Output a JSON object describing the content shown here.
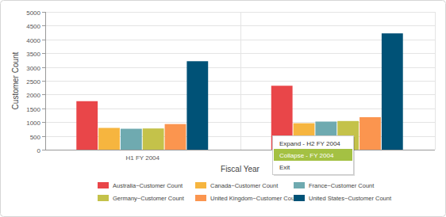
{
  "chart_data": {
    "type": "bar",
    "x_label": "Fiscal Year",
    "y_label": "Customer Count",
    "categories": [
      "H1 FY 2004",
      null
    ],
    "series": [
      {
        "name": "Australia~Customer Count",
        "color": "#e94649",
        "values": [
          1760,
          2320
        ]
      },
      {
        "name": "Canada~Customer Count",
        "color": "#f6b53f",
        "values": [
          790,
          960
        ]
      },
      {
        "name": "France~Customer Count",
        "color": "#6faab0",
        "values": [
          760,
          1020
        ]
      },
      {
        "name": "Germany~Customer Count",
        "color": "#c4c24a",
        "values": [
          770,
          1040
        ]
      },
      {
        "name": "United Kingdom~Customer Count",
        "color": "#fb954f",
        "values": [
          930,
          1180
        ]
      },
      {
        "name": "United States~Customer Count",
        "color": "#005277",
        "values": [
          3210,
          4220
        ]
      }
    ],
    "ylim": [
      0,
      5000
    ],
    "yticks": [
      0,
      500,
      1000,
      1500,
      2000,
      2500,
      3000,
      3500,
      4000,
      4500,
      5000
    ],
    "grid": true,
    "legend": "bottom",
    "annotations": [
      "Expand - H2 FY 2004",
      "Collapse - FY 2004",
      "Exit"
    ]
  }
}
